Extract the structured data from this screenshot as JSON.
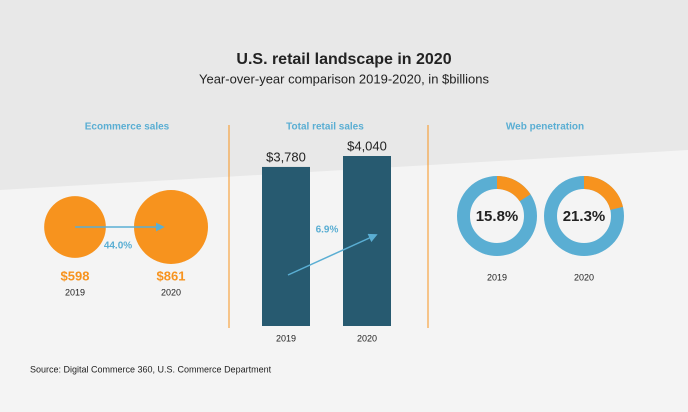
{
  "title": "U.S. retail landscape in 2020",
  "subtitle": "Year-over-year comparison 2019-2020, in $billions",
  "source": "Source: Digital Commerce 360, U.S. Commerce Department",
  "chart_data": [
    {
      "type": "bubble",
      "title": "Ecommerce sales",
      "categories": [
        "2019",
        "2020"
      ],
      "values": [
        598,
        861
      ],
      "value_labels": [
        "$598",
        "$861"
      ],
      "color": "#f7931e",
      "growth": {
        "value": 44.0,
        "label": "44.0%"
      },
      "arrow_color": "#5aaed3"
    },
    {
      "type": "bar",
      "title": "Total retail sales",
      "categories": [
        "2019",
        "2020"
      ],
      "values": [
        3780,
        4040
      ],
      "value_labels": [
        "$3,780",
        "$4,040"
      ],
      "color": "#275a70",
      "growth": {
        "value": 6.9,
        "label": "6.9%"
      },
      "arrow_color": "#5aaed3"
    },
    {
      "type": "donut",
      "title": "Web penetration",
      "categories": [
        "2019",
        "2020"
      ],
      "values": [
        15.8,
        21.3
      ],
      "value_labels": [
        "15.8%",
        "21.3%"
      ],
      "color": "#f7931e",
      "rest_color": "#5aaed3"
    }
  ]
}
